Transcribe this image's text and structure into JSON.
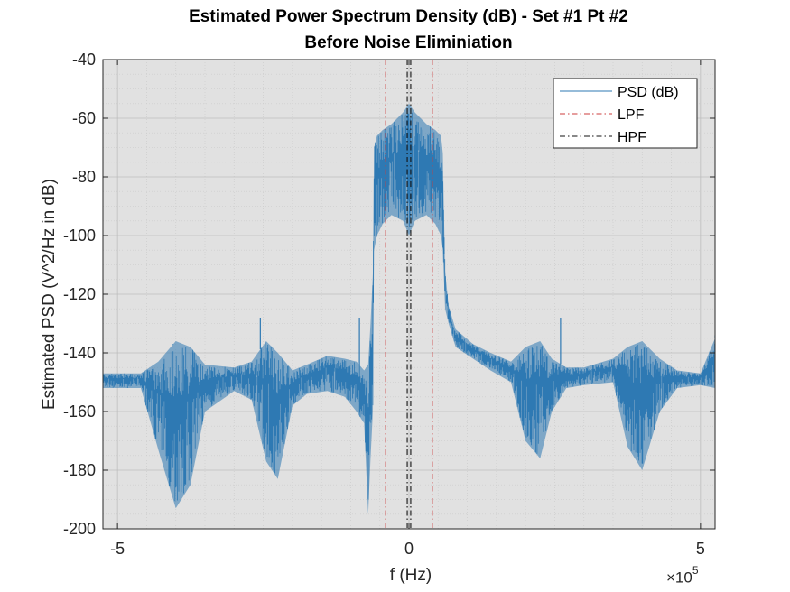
{
  "title": {
    "line1": "Estimated Power Spectrum Density (dB) - Set #1 Pt #2",
    "line2": "Before Noise Eliminiation"
  },
  "xlabel": "f (Hz)",
  "ylabel": "Estimated PSD (V^2/Hz in dB)",
  "x_exponent": {
    "base": "×10",
    "power": "5"
  },
  "colors": {
    "axes_background": "#e1e1e1",
    "psd": "#2e79b3",
    "lpf": "#cc3c3c",
    "hpf": "#111111",
    "grid": "#bdbdbd"
  },
  "chart_data": {
    "type": "line",
    "title": "Estimated Power Spectrum Density (dB) - Set #1 Pt #2 Before Noise Eliminiation",
    "xlabel": "f (Hz)",
    "ylabel": "Estimated PSD (V^2/Hz in dB)",
    "xlim": [
      -525000,
      525000
    ],
    "ylim": [
      -200,
      -40
    ],
    "xticks": [
      -500000,
      0,
      500000
    ],
    "xtick_labels": [
      "-5",
      "0",
      "5"
    ],
    "yticks": [
      -200,
      -180,
      -160,
      -140,
      -120,
      -100,
      -80,
      -60,
      -40
    ],
    "ytick_labels": [
      "-200",
      "-180",
      "-160",
      "-140",
      "-120",
      "-100",
      "-80",
      "-60",
      "-40"
    ],
    "grid": true,
    "minor_grid": true,
    "legend_position": "top-right",
    "series": [
      {
        "name": "PSD (dB)",
        "style": "solid",
        "color": "#2e79b3",
        "envelope": {
          "x": [
            -525000,
            -460000,
            -430000,
            -400000,
            -375000,
            -350000,
            -300000,
            -270000,
            -245000,
            -225000,
            -200000,
            -175000,
            -140000,
            -110000,
            -90000,
            -77000,
            -70000,
            -66000,
            -62000,
            -60000,
            -55000,
            -45000,
            -30000,
            -10000,
            0,
            10000,
            30000,
            45000,
            55000,
            58000,
            62000,
            68000,
            80000,
            110000,
            140000,
            175000,
            200000,
            225000,
            245000,
            270000,
            300000,
            350000,
            375000,
            400000,
            430000,
            460000,
            500000,
            525000
          ],
          "upper": [
            -147,
            -147,
            -143,
            -136,
            -138,
            -144,
            -145,
            -143,
            -136,
            -140,
            -146,
            -144,
            -141,
            -142,
            -143,
            -146,
            -144,
            -130,
            -113,
            -70,
            -66,
            -64,
            -62,
            -58,
            -55,
            -58,
            -62,
            -64,
            -66,
            -72,
            -112,
            -124,
            -132,
            -137,
            -140,
            -143,
            -138,
            -136,
            -142,
            -145,
            -145,
            -142,
            -138,
            -136,
            -142,
            -146,
            -147,
            -135
          ],
          "lower": [
            -152,
            -152,
            -173,
            -193,
            -185,
            -160,
            -153,
            -156,
            -177,
            -183,
            -158,
            -154,
            -153,
            -155,
            -160,
            -164,
            -195,
            -176,
            -160,
            -105,
            -100,
            -96,
            -93,
            -95,
            -100,
            -95,
            -93,
            -96,
            -100,
            -105,
            -125,
            -130,
            -138,
            -142,
            -146,
            -150,
            -170,
            -176,
            -160,
            -152,
            -151,
            -150,
            -172,
            -180,
            -160,
            -152,
            -151,
            -152
          ]
        },
        "spikes": [
          {
            "x": -405000,
            "y": -137
          },
          {
            "x": -255000,
            "y": -128
          },
          {
            "x": -85000,
            "y": -128
          },
          {
            "x": 260000,
            "y": -128
          },
          {
            "x": 525000,
            "y": -134
          }
        ]
      },
      {
        "name": "LPF",
        "style": "dash-dot",
        "color": "#cc3c3c",
        "x": [
          -40000,
          40000
        ]
      },
      {
        "name": "HPF",
        "style": "dash-dot",
        "color": "#111111",
        "x": [
          -3000,
          3000
        ]
      }
    ]
  }
}
